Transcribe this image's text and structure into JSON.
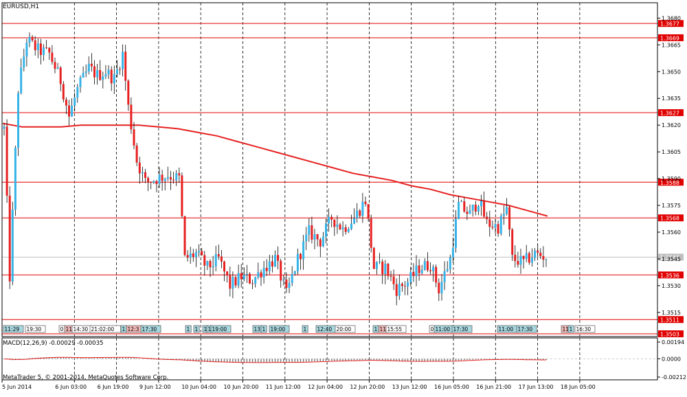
{
  "window_title": "EURUSD,H1",
  "copyright": "MetaTrader 5, © 2001-2014, MetaQuotes Software Corp.",
  "macd_label": "MACD(12,26,9) -0.00029 -0.00035",
  "chart_data": {
    "type": "candlestick",
    "symbol": "EURUSD",
    "timeframe": "H1",
    "price_axis": {
      "range": [
        1.3503,
        1.3684
      ],
      "ticks": [
        "1.3680",
        "1.3665",
        "1.3650",
        "1.3635",
        "1.3620",
        "1.3605",
        "1.3590",
        "1.3575",
        "1.3560",
        "1.3545",
        "1.3530",
        "1.3515"
      ]
    },
    "time_axis": {
      "labels": [
        "5 Jun 2014",
        "6 Jun 03:00",
        "6 Jun 19:00",
        "9 Jun 12:00",
        "10 Jun 04:00",
        "10 Jun 20:00",
        "11 Jun 12:00",
        "12 Jun 04:00",
        "12 Jun 20:00",
        "13 Jun 12:00",
        "16 Jun 05:00",
        "16 Jun 21:00",
        "17 Jun 13:00",
        "18 Jun 05:00"
      ]
    },
    "horizontal_levels": [
      {
        "value": 1.3677,
        "label": "1.3677"
      },
      {
        "value": 1.3669,
        "label": "1.3669"
      },
      {
        "value": 1.3627,
        "label": "1.3627"
      },
      {
        "value": 1.3588,
        "label": "1.3588"
      },
      {
        "value": 1.3568,
        "label": "1.3568"
      },
      {
        "value": 1.3536,
        "label": "1.3536"
      },
      {
        "value": 1.3511,
        "label": "1.3511"
      },
      {
        "value": 1.3503,
        "label": "1.3503"
      }
    ],
    "current_price": {
      "value": 1.3546,
      "label": "1.3546"
    },
    "bid_line_color": "#c0c0c0",
    "level_color": "#e00000",
    "bull_color": "#35b3e8",
    "bear_color": "#e62020",
    "ma_color": "#e62020",
    "moving_average": [
      1.3621,
      1.3619,
      1.3619,
      1.3619,
      1.362,
      1.362,
      1.362,
      1.362,
      1.3619,
      1.3618,
      1.3616,
      1.3614,
      1.3611,
      1.3608,
      1.3605,
      1.3602,
      1.3599,
      1.3596,
      1.3593,
      1.3591,
      1.3589,
      1.3586,
      1.3584,
      1.3581,
      1.3579,
      1.3577,
      1.3575,
      1.3572,
      1.3569
    ],
    "event_flags": [
      {
        "label": "11:29"
      },
      {
        "label": "19:30"
      },
      {
        "label": "0"
      },
      {
        "label": "11"
      },
      {
        "label": "14:30"
      },
      {
        "label": "21:02:00"
      },
      {
        "label": "1"
      },
      {
        "label": "12:3"
      },
      {
        "label": "17:30"
      },
      {
        "label": "1"
      },
      {
        "label": "1"
      },
      {
        "label": "1"
      },
      {
        "label": "1"
      },
      {
        "label": "19:00"
      },
      {
        "label": "13"
      },
      {
        "label": "1"
      },
      {
        "label": "19:00"
      },
      {
        "label": "1"
      },
      {
        "label": "12:40"
      },
      {
        "label": "20:00"
      },
      {
        "label": "1"
      },
      {
        "label": "11"
      },
      {
        "label": "15:55"
      },
      {
        "label": "0"
      },
      {
        "label": "11:00"
      },
      {
        "label": "17:30"
      },
      {
        "label": "11:00"
      },
      {
        "label": "17:30"
      },
      {
        "label": "11"
      },
      {
        "label": "1"
      },
      {
        "label": "16:30"
      }
    ],
    "macd": {
      "name": "MACD(12,26,9)",
      "main": -0.00029,
      "signal": -0.00035,
      "ticks": [
        "0.00194",
        "0.0000",
        "-0.00212"
      ],
      "range": [
        -0.00212,
        0.00194
      ]
    }
  }
}
